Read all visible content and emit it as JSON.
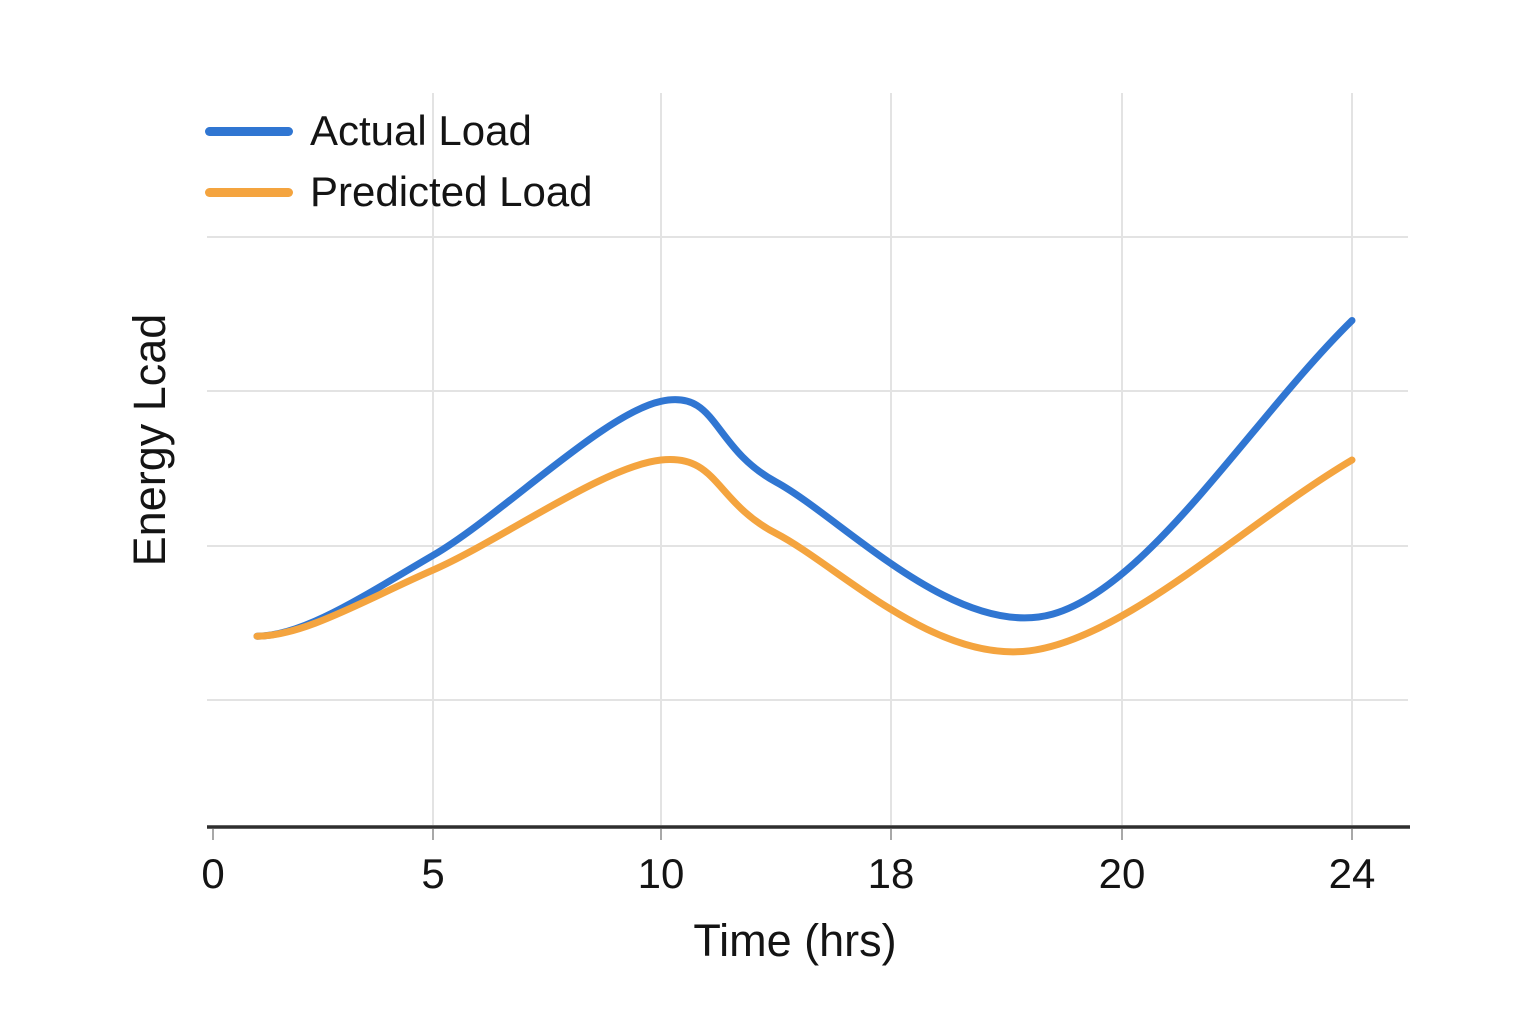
{
  "chart_data": {
    "type": "line",
    "title": "",
    "xlabel": "Time (hrs)",
    "ylabel": "Energy Lcad",
    "x_tick_labels": [
      "0",
      "5",
      "10",
      "18",
      "20",
      "24"
    ],
    "x_tick_hours": [
      0,
      5,
      10,
      18,
      20,
      24
    ],
    "y_tick_labels": [],
    "value_scale_note": "no y-axis tick labels shown; series values are relative units 0-100",
    "grid": true,
    "legend_position": "top-left",
    "legend": {
      "entries": [
        {
          "label": "Actual Load",
          "color": "#3076D2"
        },
        {
          "label": "Predicted Load",
          "color": "#F4A43F"
        }
      ]
    },
    "series": [
      {
        "name": "Actual Load",
        "color": "#3076D2",
        "points": [
          [
            1,
            26
          ],
          [
            5,
            37
          ],
          [
            10,
            58
          ],
          [
            14,
            47
          ],
          [
            19.4,
            29
          ],
          [
            24,
            69
          ]
        ]
      },
      {
        "name": "Predicted Load",
        "color": "#F4A43F",
        "points": [
          [
            1,
            26
          ],
          [
            5,
            35
          ],
          [
            10,
            50
          ],
          [
            14,
            40
          ],
          [
            19.2,
            24
          ],
          [
            24,
            50
          ]
        ]
      }
    ]
  },
  "colors": {
    "background": "#FFFFFF",
    "gridline": "#E3E3E3",
    "axis_line": "#2E2E2E",
    "tick_mark": "#A8A8A8",
    "text": "#141414",
    "actual_load": "#3076D2",
    "predicted_load": "#F4A43F"
  }
}
